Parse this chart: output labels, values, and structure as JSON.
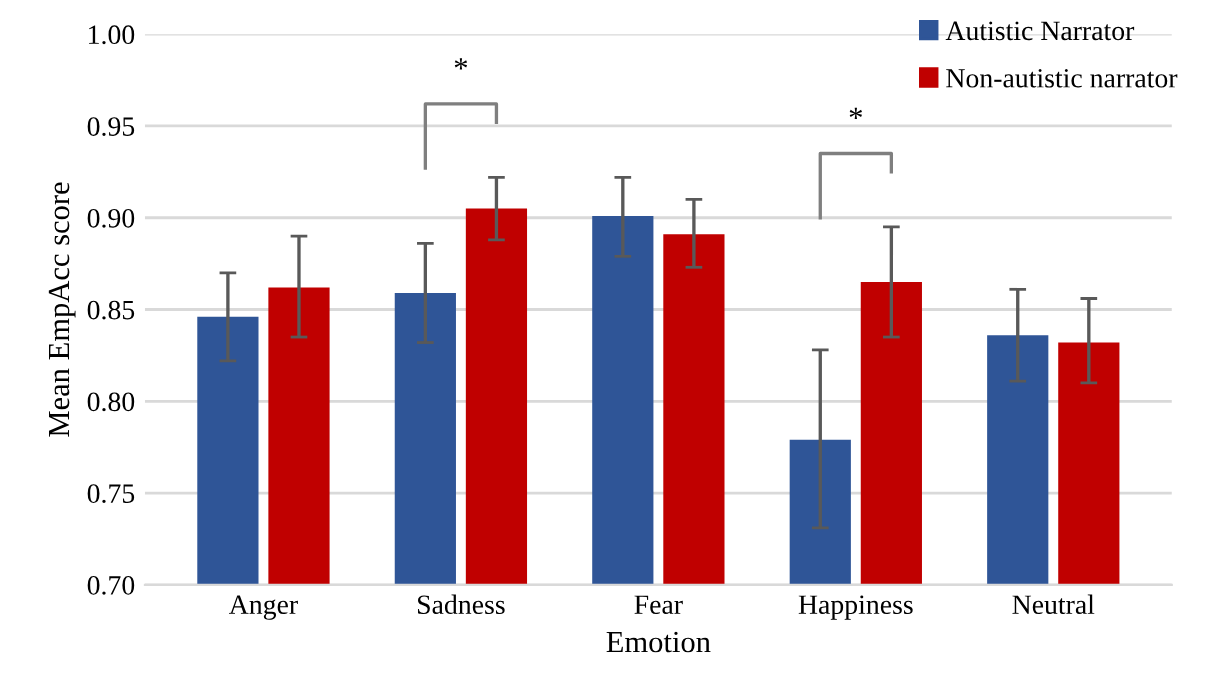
{
  "chart_data": {
    "type": "bar",
    "xlabel": "Emotion",
    "ylabel": "Mean EmpAcc score",
    "categories": [
      "Anger",
      "Sadness",
      "Fear",
      "Happiness",
      "Neutral"
    ],
    "series": [
      {
        "name": "Autistic Narrator",
        "color": "#2f5597",
        "values": [
          0.846,
          0.859,
          0.901,
          0.779,
          0.836
        ],
        "errors": [
          [
            0.822,
            0.87
          ],
          [
            0.832,
            0.886
          ],
          [
            0.879,
            0.922
          ],
          [
            0.731,
            0.828
          ],
          [
            0.811,
            0.861
          ]
        ]
      },
      {
        "name": "Non-autistic narrator",
        "color": "#c00000",
        "values": [
          0.862,
          0.905,
          0.891,
          0.865,
          0.832
        ],
        "errors": [
          [
            0.835,
            0.89
          ],
          [
            0.888,
            0.922
          ],
          [
            0.873,
            0.91
          ],
          [
            0.835,
            0.895
          ],
          [
            0.81,
            0.856
          ]
        ]
      }
    ],
    "ylim": [
      0.7,
      1.0
    ],
    "yticks": [
      {
        "value": 0.7,
        "label": "0.70"
      },
      {
        "value": 0.75,
        "label": "0.75"
      },
      {
        "value": 0.8,
        "label": "0.80"
      },
      {
        "value": 0.85,
        "label": "0.85"
      },
      {
        "value": 0.9,
        "label": "0.90"
      },
      {
        "value": 0.95,
        "label": "0.95"
      },
      {
        "value": 1.0,
        "label": "1.00"
      }
    ],
    "grid": "y",
    "legend": "top right",
    "annotations": [
      "*",
      "*"
    ]
  }
}
